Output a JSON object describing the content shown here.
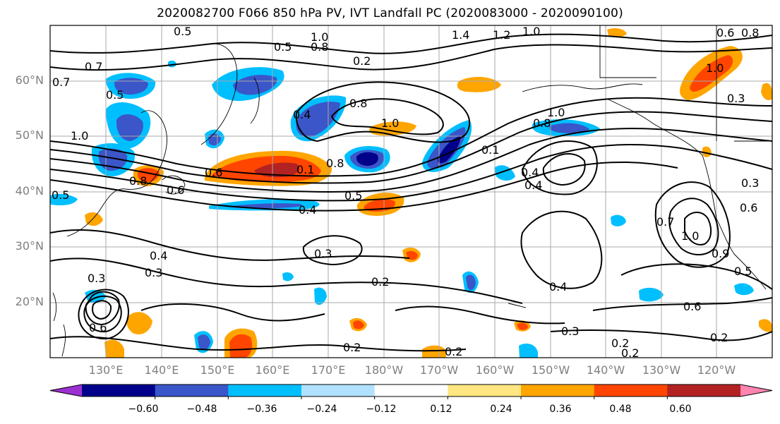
{
  "title": "2020082700 F066 850 hPa PV, IVT Landfall PC (2020083000 - 2020090100)",
  "lat_labels": [
    "60°N",
    "50°N",
    "40°N",
    "30°N",
    "20°N"
  ],
  "lon_labels": [
    "130°E",
    "140°E",
    "150°E",
    "160°E",
    "170°E",
    "180°W",
    "170°W",
    "160°W",
    "150°W",
    "140°W",
    "130°W",
    "120°W"
  ],
  "colorbar": {
    "ticks": [
      "−0.60",
      "−0.48",
      "−0.36",
      "−0.24",
      "−0.12",
      "0.12",
      "0.24",
      "0.36",
      "0.48",
      "0.60"
    ],
    "colors": [
      "#9b30d0",
      "#00008b",
      "#3a56c8",
      "#00bfff",
      "#b0e2ff",
      "#ffffff",
      "#ffe680",
      "#ffa500",
      "#ff4500",
      "#b22222",
      "#ff85b0"
    ]
  },
  "contour_labels": [
    "0.5",
    "0.5",
    "1.0",
    "0.8",
    "1.4",
    "1.2",
    "1.0",
    "0.6",
    "0.8",
    "0.7",
    "0.7",
    "0.5",
    "0.2",
    "1.0",
    "0.4",
    "0.8",
    "1.0",
    "0.8",
    "1.0",
    "0.1",
    "0.3",
    "1.0",
    "0.6",
    "0.8",
    "0.6",
    "0.1",
    "0.8",
    "0.5",
    "0.4",
    "0.4",
    "0.3",
    "0.4",
    "0.3",
    "0.3",
    "0.2",
    "0.4",
    "0.6",
    "0.5",
    "0.2",
    "0.2",
    "0.3",
    "0.2",
    "0.2",
    "0.2",
    "0.6",
    "0.7",
    "1.0",
    "0.9",
    "0.6",
    "0.4",
    "0.5",
    "0.3"
  ]
}
